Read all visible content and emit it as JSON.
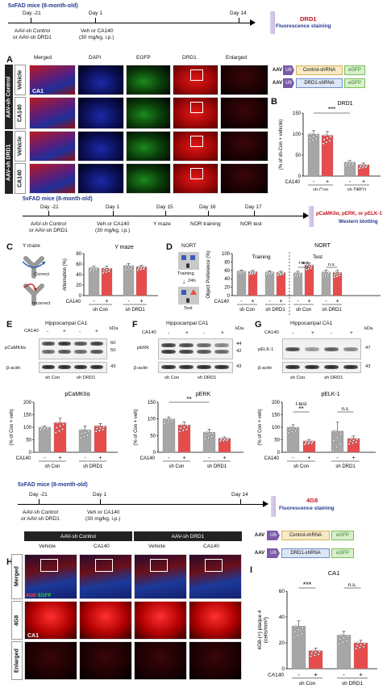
{
  "timeline1": {
    "cohort": "5xFAD mice (8-month-old)",
    "day_m21": "Day -21",
    "inj_line1": "AAV-sh Control",
    "inj_line2": "or AAV-sh DRD1",
    "day_1": "Day 1",
    "treat_line1": "Veh or CA140",
    "treat_line2": "(30 mg/kg, i.p.)",
    "day_14": "Day 14",
    "target": "DRD1",
    "method": "Fluorescence staining"
  },
  "panelA": {
    "letter": "A",
    "columns": [
      "Merged",
      "DAPI",
      "EGFP",
      "DRD1",
      "Enlarged"
    ],
    "group1": "AAV-sh Control",
    "group2": "AAV-sh DRD1",
    "rows": [
      "Vehicle",
      "CA140",
      "Vehicle",
      "CA140"
    ],
    "region": "CA1"
  },
  "constructs": {
    "u6": "U6",
    "aav": "AAV",
    "control": "Control-shRNA",
    "drd1": "DRD1-shRNA",
    "egfp": "eGFP"
  },
  "panelB": {
    "letter": "B",
    "title": "DRD1",
    "ylabel": "(% of sh-Con + vehicle)",
    "sig": "***",
    "ca140": "CA140",
    "minus": "-",
    "plus": "+",
    "group1": "sh Con",
    "group2": "sh DRD1"
  },
  "timeline2": {
    "cohort": "5xFAD mice (8-month-old)",
    "day_m21": "Day -21",
    "inj_line1": "AAV-sh Control",
    "inj_line2": "or AAV-sh DRD1",
    "day_1": "Day 1",
    "treat_line1": "Veh or CA140",
    "treat_line2": "(30 mg/kg, i.p.)",
    "day_15": "Day 15",
    "ymaze": "Y maze",
    "day_16": "Day 16",
    "nor_train": "NOR training",
    "day_17": "Day 17",
    "nor_test": "NOR test",
    "target": "pCaMKIIα, pERK, or pELK-1",
    "method": "Western blotting"
  },
  "panelC": {
    "letter": "C",
    "scheme_title": "Y maze",
    "correct": "Correct",
    "incorrect": "Incorrect",
    "title": "Y maze",
    "ylabel": "Alternation (%)"
  },
  "panelD": {
    "letter": "D",
    "scheme_title": "NORT",
    "training": "Training",
    "delay": "24h",
    "test": "Test",
    "title": "NORT",
    "ylabel": "Object Preference (%)",
    "training_hdr": "Training",
    "test_hdr": "Test",
    "ttest": "t-test",
    "sig": "*",
    "ns": "n.s."
  },
  "panelE": {
    "letter": "E",
    "title": "Hippocampal CA1",
    "kda": "kDa",
    "band1": "pCaMKIIα",
    "band2": "β-actin",
    "mw1": "60",
    "mw2": "50",
    "mw3": "43",
    "chart_title": "pCaMKIIα",
    "ylabel": "(% of Con + veh)"
  },
  "panelF": {
    "letter": "F",
    "title": "Hippocampal CA1",
    "kda": "kDa",
    "band1": "pERK",
    "band2": "β-actin",
    "mw1": "44",
    "mw2": "42",
    "mw3": "43",
    "chart_title": "pERK",
    "ylabel": "(% of Con + veh)",
    "sig": "**"
  },
  "panelG": {
    "letter": "G",
    "title": "Hippocampal CA1",
    "kda": "kDa",
    "band1": "pELK-1",
    "band2": "β-actin",
    "mw1": "47",
    "mw3": "43",
    "chart_title": "pELK-1",
    "ylabel": "(% of Con + veh)",
    "ttest": "t-test",
    "sig": "**",
    "ns": "n.s."
  },
  "timeline3": {
    "cohort": "5xFAD mice (8-month-old)",
    "day_m21": "Day -21",
    "inj_line1": "AAV-sh Control",
    "inj_line2": "or AAV-sh DRD1",
    "day_1": "Day 1",
    "treat_line1": "Veh or CA140",
    "treat_line2": "(30 mg/kg, i.p.)",
    "day_14": "Day 14",
    "target": "4G8",
    "method": "Fluorescence staining"
  },
  "panelH": {
    "letter": "H",
    "group1": "AAV-sh Control",
    "group2": "AAV-sh DRD1",
    "cols": [
      "Vehicle",
      "CA140",
      "Vehicle",
      "CA140"
    ],
    "rows": [
      "Merged",
      "4G8",
      "Enlarged"
    ],
    "merged_legend_a": "4G8/",
    "merged_legend_b": "EGFP",
    "region": "CA1"
  },
  "panelI": {
    "letter": "I",
    "title": "CA1",
    "ylabel": "4G8-(+) plaque #",
    "yunit": "(cells/mm²)",
    "sig": "***",
    "ns": "n.s."
  },
  "chart_data": [
    {
      "id": "B",
      "type": "bar",
      "title": "DRD1",
      "ylabel": "(% of sh-Con + vehicle)",
      "ylim": [
        0,
        150
      ],
      "yticks": [
        0,
        50,
        100,
        150
      ],
      "categories": [
        "sh Con / -",
        "sh Con / +",
        "sh DRD1 / -",
        "sh DRD1 / +"
      ],
      "values": [
        100,
        97,
        33,
        27
      ],
      "errors": [
        8,
        9,
        4,
        4
      ],
      "colors": [
        "#a6a6a6",
        "#e74c4c",
        "#a6a6a6",
        "#e74c4c"
      ]
    },
    {
      "id": "C",
      "type": "bar",
      "title": "Y maze",
      "ylabel": "Alternation (%)",
      "ylim": [
        0,
        80
      ],
      "yticks": [
        0,
        20,
        40,
        60,
        80
      ],
      "categories": [
        "sh Con / -",
        "sh Con / +",
        "sh DRD1 / -",
        "sh DRD1 / +"
      ],
      "values": [
        53,
        52,
        57,
        55
      ],
      "errors": [
        3,
        4,
        4,
        3
      ],
      "colors": [
        "#a6a6a6",
        "#e74c4c",
        "#a6a6a6",
        "#e74c4c"
      ]
    },
    {
      "id": "D",
      "type": "bar",
      "title": "NORT",
      "ylabel": "Object Preference (%)",
      "ylim": [
        0,
        100
      ],
      "yticks": [
        0,
        20,
        40,
        60,
        80,
        100
      ],
      "categories": [
        "Training sh Con / -",
        "Training sh Con / +",
        "Training sh DRD1 / -",
        "Training sh DRD1 / +",
        "Test sh Con / -",
        "Test sh Con / +",
        "Test sh DRD1 / -",
        "Test sh DRD1 / +"
      ],
      "values": [
        58,
        57,
        56,
        55,
        54,
        73,
        56,
        55
      ],
      "errors": [
        3,
        3,
        3,
        3,
        4,
        5,
        5,
        5
      ],
      "colors": [
        "#a6a6a6",
        "#e74c4c",
        "#a6a6a6",
        "#e74c4c",
        "#a6a6a6",
        "#e74c4c",
        "#a6a6a6",
        "#e74c4c"
      ]
    },
    {
      "id": "E",
      "type": "bar",
      "title": "pCaMKIIα",
      "ylabel": "(% of Con + veh)",
      "ylim": [
        0,
        200
      ],
      "yticks": [
        0,
        50,
        100,
        150,
        200
      ],
      "categories": [
        "sh Con / -",
        "sh Con / +",
        "sh DRD1 / -",
        "sh DRD1 / +"
      ],
      "values": [
        100,
        118,
        90,
        105
      ],
      "errors": [
        5,
        18,
        15,
        10
      ],
      "colors": [
        "#a6a6a6",
        "#e74c4c",
        "#a6a6a6",
        "#e74c4c"
      ]
    },
    {
      "id": "F",
      "type": "bar",
      "title": "pERK",
      "ylabel": "(% of Con + veh)",
      "ylim": [
        0,
        150
      ],
      "yticks": [
        0,
        50,
        100,
        150
      ],
      "categories": [
        "sh Con / -",
        "sh Con / +",
        "sh DRD1 / -",
        "sh DRD1 / +"
      ],
      "values": [
        100,
        82,
        60,
        42
      ],
      "errors": [
        6,
        9,
        9,
        4
      ],
      "colors": [
        "#a6a6a6",
        "#e74c4c",
        "#a6a6a6",
        "#e74c4c"
      ]
    },
    {
      "id": "G",
      "type": "bar",
      "title": "pELK-1",
      "ylabel": "(% of Con + veh)",
      "ylim": [
        0,
        200
      ],
      "yticks": [
        0,
        50,
        100,
        150,
        200
      ],
      "categories": [
        "sh Con / -",
        "sh Con / +",
        "sh DRD1 / -",
        "sh DRD1 / +"
      ],
      "values": [
        100,
        45,
        85,
        55
      ],
      "errors": [
        10,
        6,
        35,
        10
      ],
      "colors": [
        "#a6a6a6",
        "#e74c4c",
        "#a6a6a6",
        "#e74c4c"
      ]
    },
    {
      "id": "I",
      "type": "bar",
      "title": "CA1",
      "ylabel": "4G8-(+) plaque #",
      "ylim": [
        0,
        60
      ],
      "yticks": [
        0,
        20,
        40,
        60
      ],
      "categories": [
        "sh Con / -",
        "sh Con / +",
        "sh DRD1 / -",
        "sh DRD1 / +"
      ],
      "values": [
        33,
        14,
        26,
        20
      ],
      "errors": [
        4,
        2,
        3,
        2
      ],
      "colors": [
        "#a6a6a6",
        "#e74c4c",
        "#a6a6a6",
        "#e74c4c"
      ]
    }
  ],
  "common": {
    "ca140": "CA140",
    "minus": "-",
    "plus": "+",
    "shcon": "sh Con",
    "shdrd1": "sh DRD1"
  }
}
